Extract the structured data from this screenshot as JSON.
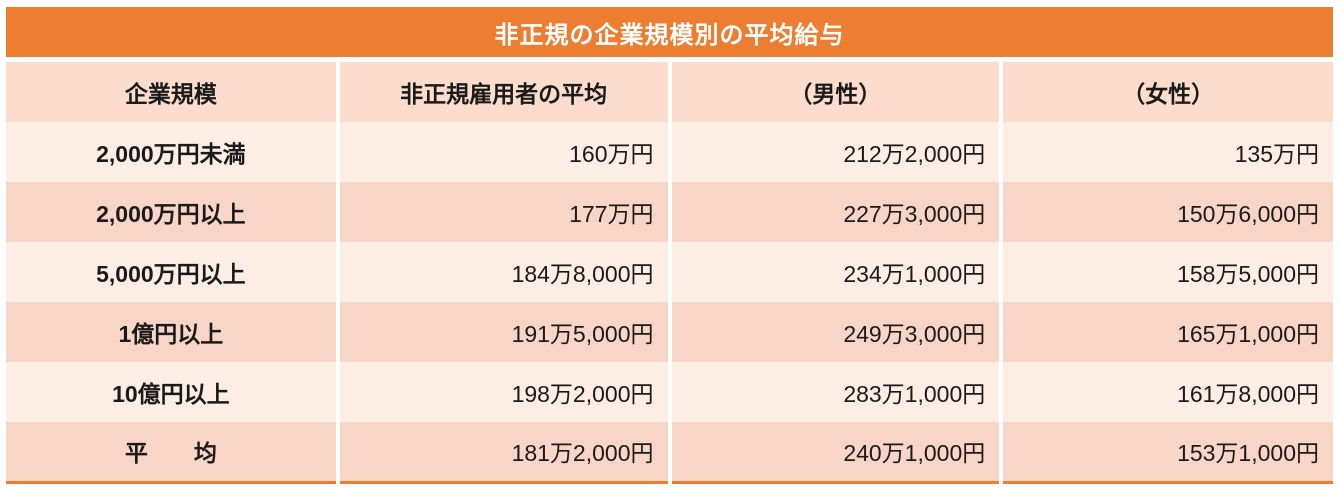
{
  "chart_data": {
    "type": "table",
    "title": "非正規の企業規模別の平均給与",
    "columns": [
      "企業規模",
      "非正規雇用者の平均",
      "（男性）",
      "（女性）"
    ],
    "rows": [
      [
        "2,000万円未満",
        "160万円",
        "212万2,000円",
        "135万円"
      ],
      [
        "2,000万円以上",
        "177万円",
        "227万3,000円",
        "150万6,000円"
      ],
      [
        "5,000万円以上",
        "184万8,000円",
        "234万1,000円",
        "158万5,000円"
      ],
      [
        "1億円以上",
        "191万5,000円",
        "249万3,000円",
        "165万1,000円"
      ],
      [
        "10億円以上",
        "198万2,000円",
        "283万1,000円",
        "161万8,000円"
      ],
      [
        "平　　均",
        "181万2,000円",
        "240万1,000円",
        "153万1,000円"
      ]
    ],
    "numeric_values_man_yen": {
      "categories": [
        "2,000万円未満",
        "2,000万円以上",
        "5,000万円以上",
        "1億円以上",
        "10億円以上",
        "平均"
      ],
      "series": [
        {
          "name": "非正規雇用者の平均",
          "values": [
            160.0,
            177.0,
            184.8,
            191.5,
            198.2,
            181.2
          ]
        },
        {
          "name": "男性",
          "values": [
            212.2,
            227.3,
            234.1,
            249.3,
            283.1,
            240.1
          ]
        },
        {
          "name": "女性",
          "values": [
            135.0,
            150.6,
            158.5,
            165.1,
            161.8,
            153.1
          ]
        }
      ]
    }
  },
  "colors": {
    "accent_orange": "#ED7D31",
    "header_bg": "#FBDCCD",
    "row_light": "#FCEDE5",
    "row_dark": "#F8D5C6"
  }
}
